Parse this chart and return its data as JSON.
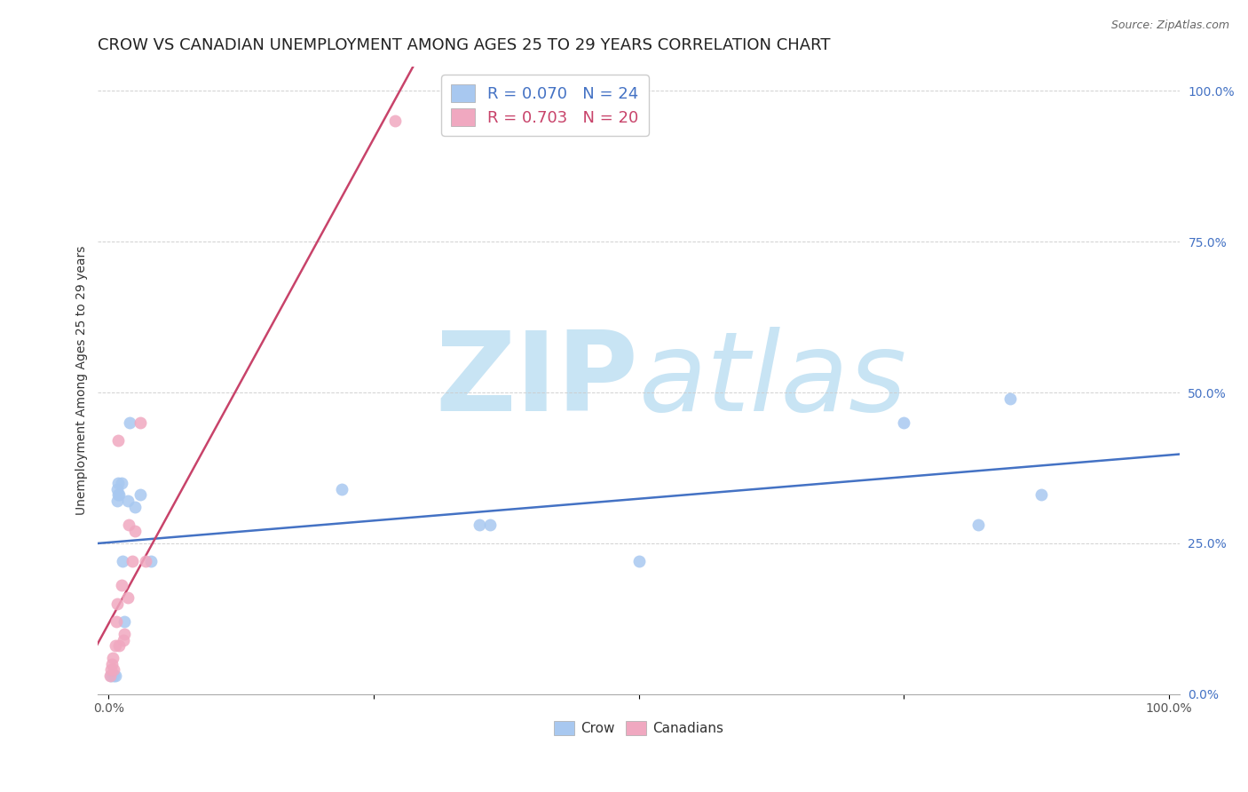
{
  "title": "CROW VS CANADIAN UNEMPLOYMENT AMONG AGES 25 TO 29 YEARS CORRELATION CHART",
  "source": "Source: ZipAtlas.com",
  "ylabel": "Unemployment Among Ages 25 to 29 years",
  "xlabel_crow": "Crow",
  "xlabel_canadians": "Canadians",
  "crow_r": 0.07,
  "crow_n": 24,
  "canadians_r": 0.703,
  "canadians_n": 20,
  "crow_color": "#A8C8F0",
  "canadians_color": "#F0A8C0",
  "crow_line_color": "#4472C4",
  "canadians_line_color": "#C8436A",
  "ytick_color": "#4472C4",
  "background_color": "#FFFFFF",
  "crow_x": [
    0.002,
    0.005,
    0.006,
    0.008,
    0.008,
    0.009,
    0.009,
    0.01,
    0.012,
    0.013,
    0.015,
    0.018,
    0.02,
    0.025,
    0.03,
    0.04,
    0.22,
    0.35,
    0.36,
    0.75,
    0.82,
    0.85,
    0.88,
    0.5
  ],
  "crow_y": [
    0.03,
    0.03,
    0.03,
    0.32,
    0.34,
    0.33,
    0.35,
    0.33,
    0.35,
    0.22,
    0.12,
    0.32,
    0.45,
    0.31,
    0.33,
    0.22,
    0.34,
    0.28,
    0.28,
    0.45,
    0.28,
    0.49,
    0.33,
    0.22
  ],
  "canadians_x": [
    0.001,
    0.002,
    0.003,
    0.004,
    0.005,
    0.006,
    0.007,
    0.008,
    0.009,
    0.01,
    0.012,
    0.014,
    0.015,
    0.018,
    0.019,
    0.022,
    0.025,
    0.03,
    0.035,
    0.27
  ],
  "canadians_y": [
    0.03,
    0.04,
    0.05,
    0.06,
    0.04,
    0.08,
    0.12,
    0.15,
    0.42,
    0.08,
    0.18,
    0.09,
    0.1,
    0.16,
    0.28,
    0.22,
    0.27,
    0.45,
    0.22,
    0.95
  ],
  "xlim": [
    0.0,
    1.0
  ],
  "ylim": [
    0.0,
    1.0
  ],
  "xticks": [
    0.0,
    0.25,
    0.5,
    0.75,
    1.0
  ],
  "xtick_labels": [
    "0.0%",
    "",
    "",
    "",
    "100.0%"
  ],
  "yticks": [
    0.0,
    0.25,
    0.5,
    0.75,
    1.0
  ],
  "ytick_labels": [
    "0.0%",
    "25.0%",
    "50.0%",
    "75.0%",
    "100.0%"
  ],
  "watermark_zip": "ZIP",
  "watermark_atlas": "atlas",
  "watermark_color": "#C8E4F4",
  "marker_size": 100,
  "title_fontsize": 13,
  "axis_fontsize": 10,
  "legend_fontsize": 13
}
